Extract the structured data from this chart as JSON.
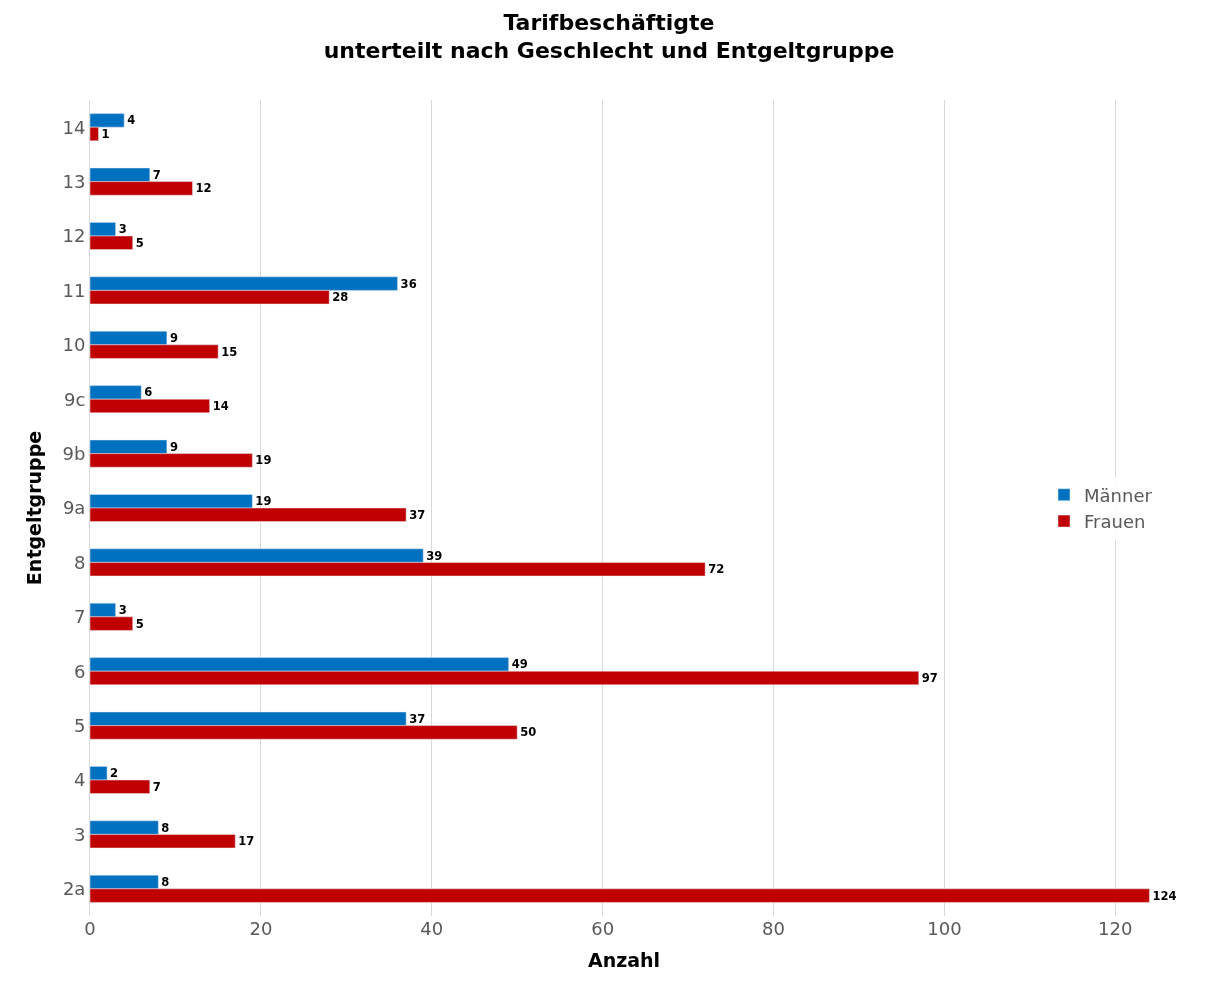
{
  "chart_data": {
    "type": "bar",
    "orientation": "horizontal",
    "title": "Tarifbeschäftigte\nunterteilt nach Geschlecht und Entgeltgruppe",
    "xlabel": "Anzahl",
    "ylabel": "Entgeltgruppe",
    "categories": [
      "14",
      "13",
      "12",
      "11",
      "10",
      "9c",
      "9b",
      "9a",
      "8",
      "7",
      "6",
      "5",
      "4",
      "3",
      "2a"
    ],
    "series": [
      {
        "name": "Männer",
        "color": "#0070c0",
        "values": [
          4,
          7,
          3,
          36,
          9,
          6,
          9,
          19,
          39,
          3,
          49,
          37,
          2,
          8,
          8
        ]
      },
      {
        "name": "Frauen",
        "color": "#c00000",
        "values": [
          1,
          12,
          5,
          28,
          15,
          14,
          19,
          37,
          72,
          5,
          97,
          50,
          7,
          17,
          124
        ]
      }
    ],
    "xlim": [
      0,
      125
    ],
    "xticks": [
      0,
      20,
      40,
      60,
      80,
      100,
      120
    ],
    "grid": "x",
    "legend": "right",
    "data_labels": true
  }
}
